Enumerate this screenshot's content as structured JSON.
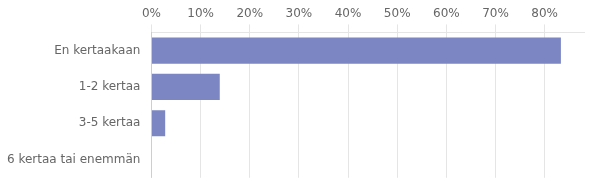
{
  "chart_data": {
    "type": "bar",
    "orientation": "horizontal",
    "categories": [
      "En kertaakaan",
      "1-2 kertaa",
      "3-5 kertaa",
      "6 kertaa tai enemmän"
    ],
    "values": [
      83.3,
      13.9,
      2.8,
      0.0
    ],
    "color": "#7b86c2",
    "xlim": [
      0,
      88
    ],
    "xticks": [
      {
        "value": 0,
        "label": "0%"
      },
      {
        "value": 10,
        "label": "10%"
      },
      {
        "value": 20,
        "label": "20%"
      },
      {
        "value": 30,
        "label": "30%"
      },
      {
        "value": 40,
        "label": "40%"
      },
      {
        "value": 50,
        "label": "50%"
      },
      {
        "value": 60,
        "label": "60%"
      },
      {
        "value": 70,
        "label": "70%"
      },
      {
        "value": 80,
        "label": "80%"
      }
    ],
    "grid": true
  }
}
